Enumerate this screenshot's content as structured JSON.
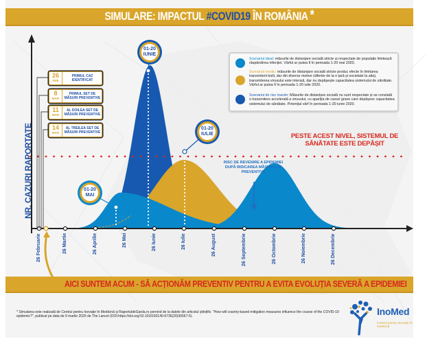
{
  "header": {
    "title_prefix": "SIMULARE: IMPACTUL ",
    "title_highlight": "#COVID19",
    "title_suffix": " ÎN ROMÂNIA",
    "title_star": "*"
  },
  "colors": {
    "gold": "#d9a52a",
    "dark_blue": "#1f4fa3",
    "mid_blue": "#1759b0",
    "light_blue": "#0a88cc",
    "red": "#d8291f"
  },
  "y_axis_label": "NR. CAZURI RAPORTATE",
  "events": [
    {
      "day": "26",
      "month": "FEB",
      "label": "PRIMUL CAZ IDENTIFICAT"
    },
    {
      "day": "8",
      "month": "MAR",
      "label": "PRIMUL SET DE MĂSURI PREVENTIVE"
    },
    {
      "day": "11",
      "month": "MAR",
      "label": "AL DOILEA SET DE MĂSURI PREVENTIVE"
    },
    {
      "day": "14",
      "month": "MAR",
      "label": "AL TREILEA SET DE MĂSURI PREVENTIVE"
    }
  ],
  "peaks": [
    {
      "scenario": "ideal",
      "range": "01-20",
      "month": "MAI"
    },
    {
      "scenario": "maxim",
      "range": "01-20",
      "month": "IUNIE"
    },
    {
      "scenario": "mediu",
      "range": "01-20",
      "month": "IULIE"
    }
  ],
  "legend": [
    {
      "name": "Scenariul ideal:",
      "color": "#0a88cc",
      "text": " măsurile de distanțare socială stricte și respectate de populație limitează răspândirea infecției. Vârful ar putea fi în perioada 1-20 mai 2020."
    },
    {
      "name": "Scenariul mediu:",
      "color": "#d9a52a",
      "text": " măsurile de distanțare socială stricte produc efecte în limitarea transmiterii bolii, dar din diverse motive (diferite de la o țară și societate la alta), transmiterea virusului este intensă, dar nu depășește capacitatea sistemului de sănătate. Vârful ar putea fi în perioada 1-20 iulie 2020."
    },
    {
      "name": "Scenariul de risc maxim:",
      "color": "#1759b0",
      "text": " Măsurile de distanțare socială nu sunt respectate și se constată o transmitere accelerată a virusului, cu apariția de cazuri grave care depășesc capacitatea sistemului de sănătate. Potențial vârf în perioada 1-20 iunie 2020."
    }
  ],
  "threshold_label": "PESTE ACEST NIVEL, SISTEMUL DE SĂNĂTATE ESTE DEPĂȘIT",
  "risk_label": "RISC DE REVENIRE A EPIDEMIEI DUPĂ RIDICAREA MĂSURILOR PREVENTIVE",
  "bottom_banner": "AICI SUNTEM ACUM - SĂ ACȚIONĂM PREVENTIV PENTRU A EVITA EVOLUȚIA SEVERĂ A EPIDEMIEI",
  "footnote": "* Simularea este realizată de Centrul pentru Inovație în Medicină și RaportuldeGarda.ro pornind de la datele din articolul științific: \"How will country-based mitigation measures influence the course of the COVID-19 epidemic?\", publicat pe data de 9 martie 2020 de The Lancet (DOI:https://doi.org/10.1016/S0140-6736(20)30567-5).",
  "logo": {
    "name": "InoMed",
    "subtitle": "Centrul pentru Inovație în medicină"
  },
  "chart_data": {
    "type": "area",
    "title": "SIMULARE: IMPACTUL #COVID19 ÎN ROMÂNIA",
    "xlabel": "",
    "ylabel": "NR. CAZURI RAPORTATE",
    "x_ticks": [
      "26 Februarie",
      "26 Martie",
      "26 Aprilie",
      "26 Mai",
      "26 Iunie",
      "26 Iulie",
      "26 August",
      "26 Septembrie",
      "26 Octombrie",
      "26 Noiembrie",
      "26 Decembrie"
    ],
    "current_marker": "8 Martie",
    "x_range_months": [
      0,
      10.6
    ],
    "y_range": [
      0,
      100
    ],
    "threshold": 42,
    "series": [
      {
        "name": "Scenariul de risc maxim",
        "color": "#1759b0",
        "peak_month": 3.85,
        "peak_value": 100,
        "width": 0.55
      },
      {
        "name": "Scenariul mediu",
        "color": "#d9a52a",
        "peak_month": 5.0,
        "peak_value": 42,
        "width": 1.1
      },
      {
        "name": "Scenariul ideal",
        "color": "#0a88cc",
        "peak_month": 2.85,
        "peak_value": 22,
        "width": 0.5,
        "tail": true
      },
      {
        "name": "Revenire epidemie",
        "color": "#0a88cc",
        "peak_month": 8.0,
        "peak_value": 40,
        "width": 0.8
      }
    ],
    "grid": false,
    "legend_position": "top-right"
  }
}
